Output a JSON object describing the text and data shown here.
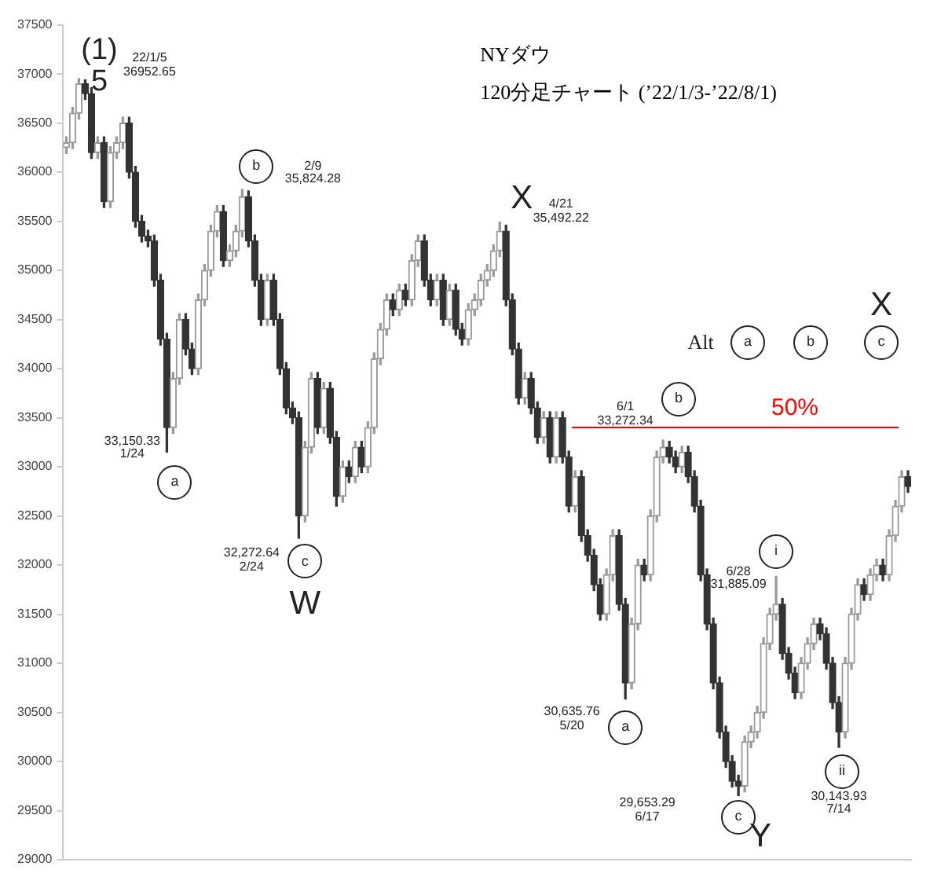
{
  "chart_data": {
    "type": "candlestick",
    "title": "NYダウ",
    "subtitle": "120分足チャート (’22/1/3-’22/8/1)",
    "categories": [
      null,
      null,
      null,
      null,
      null,
      null,
      null,
      null,
      null,
      null,
      null,
      null,
      null,
      null,
      null,
      null,
      null,
      null,
      null,
      null,
      null,
      null,
      null,
      null,
      null,
      null,
      null,
      null,
      null,
      null,
      null,
      null,
      null,
      null,
      null,
      null,
      null,
      null,
      null,
      null,
      null,
      null,
      null,
      null,
      null,
      null,
      null,
      null,
      null,
      null,
      null,
      null,
      null,
      null,
      null,
      null,
      null,
      null,
      null,
      null,
      null,
      null,
      null,
      null,
      null,
      null,
      null,
      null,
      null,
      null,
      null,
      null,
      null,
      null,
      null,
      null,
      null,
      null,
      null,
      null,
      null,
      null,
      null,
      null,
      null,
      null,
      null,
      null,
      null,
      null,
      null,
      null,
      null,
      null,
      null,
      null,
      null,
      null,
      null,
      null,
      null,
      null,
      null,
      null,
      null,
      null,
      null,
      null,
      null,
      null,
      null,
      null,
      null,
      null,
      null,
      null,
      null,
      null,
      null,
      null,
      null,
      null,
      null,
      null,
      null,
      null,
      null,
      null,
      null,
      null,
      null,
      null,
      null,
      null,
      null
    ],
    "colors": [
      "#9a9a9a",
      "#9a9a9a",
      "#9a9a9a",
      "#333333",
      "#333333",
      "#9a9a9a",
      "#333333",
      "#9a9a9a",
      "#9a9a9a",
      "#9a9a9a",
      "#333333",
      "#333333",
      "#333333",
      "#333333",
      "#333333",
      "#333333",
      "#333333",
      "#9a9a9a",
      "#9a9a9a",
      "#333333",
      "#333333",
      "#9a9a9a",
      "#9a9a9a",
      "#9a9a9a",
      "#9a9a9a",
      "#333333",
      "#9a9a9a",
      "#9a9a9a",
      "#9a9a9a",
      "#333333",
      "#333333",
      "#333333",
      "#9a9a9a",
      "#333333",
      "#333333",
      "#333333",
      "#333333",
      "#333333",
      "#9a9a9a",
      "#9a9a9a",
      "#333333",
      "#9a9a9a",
      "#333333",
      "#333333",
      "#9a9a9a",
      "#333333",
      "#9a9a9a",
      "#333333",
      "#9a9a9a",
      "#9a9a9a",
      "#9a9a9a",
      "#9a9a9a",
      "#333333",
      "#9a9a9a",
      "#333333",
      "#9a9a9a",
      "#9a9a9a",
      "#333333",
      "#333333",
      "#9a9a9a",
      "#333333",
      "#9a9a9a",
      "#333333",
      "#333333",
      "#9a9a9a",
      "#9a9a9a",
      "#9a9a9a",
      "#9a9a9a",
      "#9a9a9a",
      "#9a9a9a",
      "#333333",
      "#333333",
      "#333333",
      "#9a9a9a",
      "#333333",
      "#333333",
      "#9a9a9a",
      "#333333",
      "#9a9a9a",
      "#333333",
      "#333333",
      "#9a9a9a",
      "#333333",
      "#333333",
      "#333333",
      "#333333",
      "#9a9a9a",
      "#9a9a9a",
      "#333333",
      "#333333",
      "#9a9a9a",
      "#9a9a9a",
      "#333333",
      "#9a9a9a",
      "#9a9a9a",
      "#9a9a9a",
      "#333333",
      "#333333",
      "#9a9a9a",
      "#333333",
      "#333333",
      "#333333",
      "#333333",
      "#333333",
      "#333333",
      "#333333",
      "#333333",
      "#333333",
      "#9a9a9a",
      "#9a9a9a",
      "#9a9a9a",
      "#9a9a9a",
      "#9a9a9a",
      "#9a9a9a",
      "#333333",
      "#333333",
      "#333333",
      "#9a9a9a",
      "#9a9a9a",
      "#9a9a9a",
      "#333333",
      "#333333",
      "#333333",
      "#333333",
      "#9a9a9a",
      "#9a9a9a",
      "#9a9a9a",
      "#333333",
      "#9a9a9a",
      "#9a9a9a",
      "#333333",
      "#9a9a9a",
      "#9a9a9a",
      "#9a9a9a",
      "#333333"
    ],
    "ohlc": [
      [
        36250,
        36360,
        36190,
        36300
      ],
      [
        36300,
        36660,
        36240,
        36600
      ],
      [
        36600,
        36952.65,
        36540,
        36900
      ],
      [
        36900,
        36940,
        36740,
        36800
      ],
      [
        36800,
        36860,
        36140,
        36200
      ],
      [
        36200,
        36360,
        36140,
        36300
      ],
      [
        36300,
        36360,
        35640,
        35700
      ],
      [
        35700,
        36260,
        35640,
        36200
      ],
      [
        36200,
        36360,
        36140,
        36300
      ],
      [
        36300,
        36560,
        36240,
        36500
      ],
      [
        36500,
        36560,
        35940,
        36000
      ],
      [
        36000,
        36060,
        35440,
        35500
      ],
      [
        35500,
        35560,
        35290,
        35350
      ],
      [
        35350,
        35410,
        35240,
        35300
      ],
      [
        35300,
        35360,
        34840,
        34900
      ],
      [
        34900,
        34960,
        34240,
        34300
      ],
      [
        34300,
        34360,
        33150.33,
        33400
      ],
      [
        33400,
        33960,
        33340,
        33900
      ],
      [
        33900,
        34560,
        33840,
        34500
      ],
      [
        34500,
        34560,
        34140,
        34200
      ],
      [
        34200,
        34260,
        33940,
        34000
      ],
      [
        34000,
        34760,
        33940,
        34700
      ],
      [
        34700,
        35060,
        34640,
        35000
      ],
      [
        35000,
        35460,
        34940,
        35400
      ],
      [
        35400,
        35660,
        35340,
        35600
      ],
      [
        35600,
        35660,
        35040,
        35100
      ],
      [
        35100,
        35260,
        35040,
        35200
      ],
      [
        35200,
        35460,
        35140,
        35400
      ],
      [
        35400,
        35824.28,
        35340,
        35750
      ],
      [
        35750,
        35810,
        35240,
        35300
      ],
      [
        35300,
        35360,
        34840,
        34900
      ],
      [
        34900,
        34960,
        34440,
        34500
      ],
      [
        34500,
        34960,
        34440,
        34900
      ],
      [
        34900,
        34960,
        34440,
        34500
      ],
      [
        34500,
        34560,
        33940,
        34000
      ],
      [
        34000,
        34060,
        33540,
        33600
      ],
      [
        33600,
        33660,
        33440,
        33500
      ],
      [
        33500,
        33560,
        32272.64,
        32500
      ],
      [
        32500,
        33260,
        32440,
        33200
      ],
      [
        33200,
        33960,
        33140,
        33900
      ],
      [
        33900,
        33960,
        33340,
        33400
      ],
      [
        33400,
        33860,
        33340,
        33800
      ],
      [
        33800,
        33860,
        33240,
        33300
      ],
      [
        33300,
        33360,
        32600,
        32700
      ],
      [
        32700,
        33060,
        32640,
        33000
      ],
      [
        33000,
        33060,
        32840,
        32900
      ],
      [
        32900,
        33260,
        32840,
        33200
      ],
      [
        33200,
        33260,
        32940,
        33000
      ],
      [
        33000,
        33460,
        32940,
        33400
      ],
      [
        33400,
        34160,
        33340,
        34100
      ],
      [
        34100,
        34460,
        34040,
        34400
      ],
      [
        34400,
        34760,
        34340,
        34700
      ],
      [
        34700,
        34760,
        34540,
        34600
      ],
      [
        34600,
        34860,
        34540,
        34800
      ],
      [
        34800,
        34860,
        34640,
        34700
      ],
      [
        34700,
        35160,
        34640,
        35100
      ],
      [
        35100,
        35360,
        35040,
        35300
      ],
      [
        35300,
        35360,
        34840,
        34900
      ],
      [
        34900,
        34960,
        34640,
        34700
      ],
      [
        34700,
        34960,
        34640,
        34900
      ],
      [
        34900,
        34960,
        34440,
        34500
      ],
      [
        34500,
        34860,
        34440,
        34800
      ],
      [
        34800,
        34860,
        34340,
        34400
      ],
      [
        34400,
        34460,
        34240,
        34300
      ],
      [
        34300,
        34660,
        34240,
        34600
      ],
      [
        34600,
        34760,
        34540,
        34700
      ],
      [
        34700,
        34960,
        34640,
        34900
      ],
      [
        34900,
        35060,
        34840,
        35000
      ],
      [
        35000,
        35260,
        34940,
        35200
      ],
      [
        35200,
        35492.22,
        35140,
        35400
      ],
      [
        35400,
        35460,
        34640,
        34700
      ],
      [
        34700,
        34760,
        34140,
        34200
      ],
      [
        34200,
        34260,
        33640,
        33700
      ],
      [
        33700,
        33960,
        33640,
        33900
      ],
      [
        33900,
        33960,
        33540,
        33600
      ],
      [
        33600,
        33660,
        33240,
        33300
      ],
      [
        33300,
        33560,
        33240,
        33500
      ],
      [
        33500,
        33560,
        33040,
        33100
      ],
      [
        33100,
        33560,
        33040,
        33500
      ],
      [
        33500,
        33560,
        33040,
        33100
      ],
      [
        33100,
        33160,
        32540,
        32600
      ],
      [
        32600,
        32960,
        32540,
        32900
      ],
      [
        32900,
        32960,
        32240,
        32300
      ],
      [
        32300,
        32360,
        32040,
        32100
      ],
      [
        32100,
        32160,
        31740,
        31800
      ],
      [
        31800,
        31860,
        31440,
        31500
      ],
      [
        31500,
        31960,
        31440,
        31900
      ],
      [
        31900,
        32360,
        31840,
        32300
      ],
      [
        32300,
        32360,
        31540,
        31600
      ],
      [
        31600,
        31660,
        30635.76,
        30800
      ],
      [
        30800,
        31460,
        30740,
        31400
      ],
      [
        31400,
        32060,
        31340,
        32000
      ],
      [
        32000,
        32060,
        31840,
        31900
      ],
      [
        31900,
        32560,
        31840,
        32500
      ],
      [
        32500,
        33160,
        32440,
        33100
      ],
      [
        33100,
        33272.34,
        33040,
        33200
      ],
      [
        33200,
        33260,
        33040,
        33100
      ],
      [
        33100,
        33160,
        32940,
        33000
      ],
      [
        33000,
        33210,
        32940,
        33150
      ],
      [
        33150,
        33210,
        32840,
        32900
      ],
      [
        32900,
        32960,
        32540,
        32600
      ],
      [
        32600,
        32660,
        31840,
        31900
      ],
      [
        31900,
        31960,
        31340,
        31400
      ],
      [
        31400,
        31460,
        30740,
        30800
      ],
      [
        30800,
        30860,
        30240,
        30300
      ],
      [
        30300,
        30360,
        29940,
        30000
      ],
      [
        30000,
        30060,
        29740,
        29800
      ],
      [
        29800,
        29860,
        29653.29,
        29750
      ],
      [
        29750,
        30260,
        29690,
        30200
      ],
      [
        30200,
        30360,
        30140,
        30300
      ],
      [
        30300,
        30560,
        30240,
        30500
      ],
      [
        30500,
        31260,
        30440,
        31200
      ],
      [
        31200,
        31560,
        31140,
        31500
      ],
      [
        31500,
        31885.09,
        31440,
        31600
      ],
      [
        31600,
        31660,
        31040,
        31100
      ],
      [
        31100,
        31160,
        30840,
        30900
      ],
      [
        30900,
        30960,
        30640,
        30700
      ],
      [
        30700,
        31060,
        30640,
        31000
      ],
      [
        31000,
        31260,
        30940,
        31200
      ],
      [
        31200,
        31460,
        31140,
        31400
      ],
      [
        31400,
        31460,
        31240,
        31300
      ],
      [
        31300,
        31360,
        30940,
        31000
      ],
      [
        31000,
        31060,
        30540,
        30600
      ],
      [
        30600,
        30660,
        30143.93,
        30300
      ],
      [
        30300,
        31060,
        30240,
        31000
      ],
      [
        31000,
        31560,
        30940,
        31500
      ],
      [
        31500,
        31860,
        31440,
        31800
      ],
      [
        31800,
        31860,
        31640,
        31700
      ],
      [
        31700,
        31960,
        31640,
        31900
      ],
      [
        31900,
        32060,
        31840,
        32000
      ],
      [
        32000,
        32060,
        31840,
        31900
      ],
      [
        31900,
        32360,
        31840,
        32300
      ],
      [
        32300,
        32660,
        32240,
        32600
      ],
      [
        32600,
        32960,
        32540,
        32900
      ],
      [
        32900,
        32960,
        32740,
        32800
      ]
    ],
    "ylim": [
      29000,
      37500
    ],
    "yticks": [
      29000,
      29500,
      30000,
      30500,
      31000,
      31500,
      32000,
      32500,
      33000,
      33500,
      34000,
      34500,
      35000,
      35500,
      36000,
      36500,
      37000,
      37500
    ],
    "tick_labels": "y",
    "ref_lines": [
      {
        "axis": "y",
        "value": 33400,
        "color": "#ff0000"
      }
    ],
    "annotations": [
      "(1)",
      "5",
      "22/1/5\n36952.65",
      "b",
      "2/9\n35,824.28",
      "33,150.33\n1/24",
      "a",
      "32,272.64\n2/24",
      "c",
      "W",
      "X",
      "4/21\n35,492.22",
      "b",
      "6/1\n33,272.34",
      "30,635.76\n5/20",
      "a",
      "29,653.29\n6/17",
      "c",
      "Y",
      "i",
      "6/28\n31,885.09",
      "ii",
      "30,143.93\n7/14",
      "Alt",
      "a",
      "b",
      "c",
      "X",
      "50%"
    ]
  }
}
